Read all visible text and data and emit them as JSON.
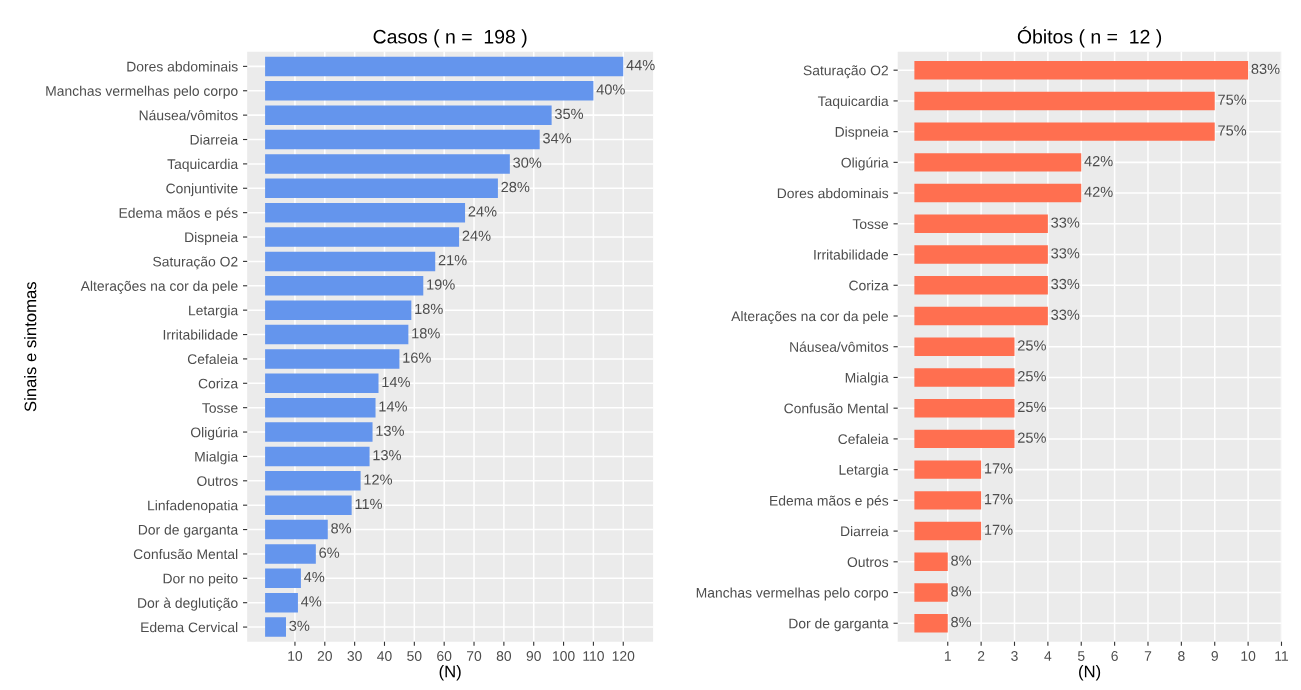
{
  "chart_data": [
    {
      "type": "bar",
      "orientation": "horizontal",
      "title": "Casos ( n =  198 )",
      "xlabel": "(N)",
      "ylabel": "Sinais e sintomas",
      "categories": [
        "Dores abdominais",
        "Manchas vermelhas pelo corpo",
        "Náusea/vômitos",
        "Diarreia",
        "Taquicardia",
        "Conjuntivite",
        "Edema mãos e pés",
        "Dispneia",
        "Saturação O2",
        "Alterações na cor da pele",
        "Letargia",
        "Irritabilidade",
        "Cefaleia",
        "Coriza",
        "Tosse",
        "Oligúria",
        "Mialgia",
        "Outros",
        "Linfadenopatia",
        "Dor de garganta",
        "Confusão Mental",
        "Dor no peito",
        "Dor à deglutição",
        "Edema Cervical"
      ],
      "values": [
        120,
        110,
        96,
        92,
        82,
        78,
        67,
        65,
        57,
        53,
        49,
        48,
        45,
        38,
        37,
        36,
        35,
        32,
        29,
        21,
        17,
        12,
        11,
        7
      ],
      "annotations": [
        {
          "text": "44%",
          "x": 120,
          "y": "Dores abdominais"
        },
        {
          "text": "40%",
          "x": 110,
          "y": "Manchas vermelhas pelo corpo"
        },
        {
          "text": "35%",
          "x": 96,
          "y": "Náusea/vômitos"
        },
        {
          "text": "34%",
          "x": 92,
          "y": "Diarreia"
        },
        {
          "text": "30%",
          "x": 82,
          "y": "Taquicardia"
        },
        {
          "text": "28%",
          "x": 78,
          "y": "Conjuntivite"
        },
        {
          "text": "24%",
          "x": 67,
          "y": "Edema mãos e pés"
        },
        {
          "text": "24%",
          "x": 65,
          "y": "Dispneia"
        },
        {
          "text": "21%",
          "x": 57,
          "y": "Saturação O2"
        },
        {
          "text": "19%",
          "x": 53,
          "y": "Alterações na cor da pele"
        },
        {
          "text": "18%",
          "x": 49,
          "y": "Letargia"
        },
        {
          "text": "18%",
          "x": 48,
          "y": "Irritabilidade"
        },
        {
          "text": "16%",
          "x": 45,
          "y": "Cefaleia"
        },
        {
          "text": "14%",
          "x": 38,
          "y": "Coriza"
        },
        {
          "text": "14%",
          "x": 37,
          "y": "Tosse"
        },
        {
          "text": "13%",
          "x": 36,
          "y": "Oligúria"
        },
        {
          "text": "13%",
          "x": 35,
          "y": "Mialgia"
        },
        {
          "text": "12%",
          "x": 32,
          "y": "Outros"
        },
        {
          "text": "11%",
          "x": 29,
          "y": "Linfadenopatia"
        },
        {
          "text": "8%",
          "x": 21,
          "y": "Dor de garganta"
        },
        {
          "text": "6%",
          "x": 17,
          "y": "Confusão Mental"
        },
        {
          "text": "4%",
          "x": 12,
          "y": "Dor no peito"
        },
        {
          "text": "4%",
          "x": 11,
          "y": "Dor à deglutição"
        },
        {
          "text": "3%",
          "x": 7,
          "y": "Edema Cervical"
        }
      ],
      "color": "#6495ed",
      "xlim": [
        -6,
        130
      ],
      "xticks": [
        10,
        20,
        30,
        40,
        50,
        60,
        70,
        80,
        90,
        100,
        110,
        120
      ],
      "grid": true
    },
    {
      "type": "bar",
      "orientation": "horizontal",
      "title": "Óbitos ( n =  12 )",
      "xlabel": "(N)",
      "categories": [
        "Saturação O2",
        "Taquicardia",
        "Dispneia",
        "Oligúria",
        "Dores abdominais",
        "Tosse",
        "Irritabilidade",
        "Coriza",
        "Alterações na cor da pele",
        "Náusea/vômitos",
        "Mialgia",
        "Confusão Mental",
        "Cefaleia",
        "Letargia",
        "Edema mãos e pés",
        "Diarreia",
        "Outros",
        "Manchas vermelhas pelo corpo",
        "Dor de garganta"
      ],
      "values": [
        10,
        9,
        9,
        5,
        5,
        4,
        4,
        4,
        4,
        3,
        3,
        3,
        3,
        2,
        2,
        2,
        1,
        1,
        1
      ],
      "annotations": [
        {
          "text": "83%",
          "x": 10,
          "y": "Saturação O2"
        },
        {
          "text": "75%",
          "x": 9,
          "y": "Taquicardia"
        },
        {
          "text": "75%",
          "x": 9,
          "y": "Dispneia"
        },
        {
          "text": "42%",
          "x": 5,
          "y": "Oligúria"
        },
        {
          "text": "42%",
          "x": 5,
          "y": "Dores abdominais"
        },
        {
          "text": "33%",
          "x": 4,
          "y": "Tosse"
        },
        {
          "text": "33%",
          "x": 4,
          "y": "Irritabilidade"
        },
        {
          "text": "33%",
          "x": 4,
          "y": "Coriza"
        },
        {
          "text": "33%",
          "x": 4,
          "y": "Alterações na cor da pele"
        },
        {
          "text": "25%",
          "x": 3,
          "y": "Náusea/vômitos"
        },
        {
          "text": "25%",
          "x": 3,
          "y": "Mialgia"
        },
        {
          "text": "25%",
          "x": 3,
          "y": "Confusão Mental"
        },
        {
          "text": "25%",
          "x": 3,
          "y": "Cefaleia"
        },
        {
          "text": "17%",
          "x": 2,
          "y": "Letargia"
        },
        {
          "text": "17%",
          "x": 2,
          "y": "Edema mãos e pés"
        },
        {
          "text": "17%",
          "x": 2,
          "y": "Diarreia"
        },
        {
          "text": "8%",
          "x": 1,
          "y": "Outros"
        },
        {
          "text": "8%",
          "x": 1,
          "y": "Manchas vermelhas pelo corpo"
        },
        {
          "text": "8%",
          "x": 1,
          "y": "Dor de garganta"
        }
      ],
      "color": "#ff6f50",
      "xlim": [
        -0.5,
        11
      ],
      "xticks": [
        1,
        2,
        3,
        4,
        5,
        6,
        7,
        8,
        9,
        10,
        11
      ],
      "grid": true
    }
  ]
}
